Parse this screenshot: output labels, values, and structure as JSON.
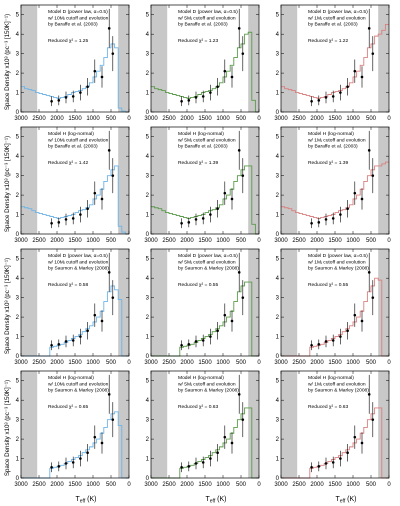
{
  "figure": {
    "ylabel": "Space Density x10³ (pc⁻³ [150K]⁻¹)",
    "xlabel": "Tₑₒₒ (K)",
    "xlabel_main": "T",
    "xlabel_sub": "eff",
    "xlabel_unit": " (K)",
    "x_ticks": [
      "3000",
      "2500",
      "2000",
      "1500",
      "1000",
      "500",
      "0"
    ],
    "y_ticks": [
      "0",
      "1",
      "2",
      "3",
      "4",
      "5"
    ]
  },
  "panel_text": [
    {
      "lines": [
        "Model D (power law, α=0.5)",
        "w/ 10Mⱼ cutoff and evolution",
        "by Baraffe et al. (2003)"
      ],
      "chi": "Reduced χ² = 1.25"
    },
    {
      "lines": [
        "Model D (power law, α=0.5)",
        "w/ 5Mⱼ cutoff and evolution",
        "by Baraffe et al. (2003)"
      ],
      "chi": "Reduced χ² = 1.23"
    },
    {
      "lines": [
        "Model D (power law, α=0.5)",
        "w/ 1Mⱼ cutoff and evolution",
        "by Baraffe et al. (2003)"
      ],
      "chi": "Reduced χ² = 1.22"
    },
    {
      "lines": [
        "Model H (log-normal)",
        "w/ 10Mⱼ cutoff and evolution",
        "by Baraffe et al. (2003)"
      ],
      "chi": "Reduced χ² = 1.42"
    },
    {
      "lines": [
        "Model H (log-normal)",
        "w/ 5Mⱼ cutoff and evolution",
        "by Baraffe et al. (2003)"
      ],
      "chi": "Reduced χ² = 1.39"
    },
    {
      "lines": [
        "Model H (log-normal)",
        "w/ 1Mⱼ cutoff and evolution",
        "by Baraffe et al. (2003)"
      ],
      "chi": "Reduced χ² = 1.39"
    },
    {
      "lines": [
        "Model D (power law, α=0.5)",
        "w/ 10Mⱼ cutoff and evolution",
        "by Saumon & Marley (2008)"
      ],
      "chi": "Reduced χ² = 0.58"
    },
    {
      "lines": [
        "Model D (power law, α=0.5)",
        "w/ 5Mⱼ cutoff and evolution",
        "by Saumon & Marley (2008)"
      ],
      "chi": "Reduced χ² = 0.55"
    },
    {
      "lines": [
        "Model D (power law, α=0.5)",
        "w/ 1Mⱼ cutoff and evolution",
        "by Saumon & Marley (2008)"
      ],
      "chi": "Reduced χ² = 0.55"
    },
    {
      "lines": [
        "Model H (log-normal)",
        "w/ 10Mⱼ cutoff and evolution",
        "by Saumon & Marley (2008)"
      ],
      "chi": "Reduced χ² = 0.65"
    },
    {
      "lines": [
        "Model H (log-normal)",
        "w/ 5Mⱼ cutoff and evolution",
        "by Saumon & Marley (2008)"
      ],
      "chi": "Reduced χ² = 0.63"
    },
    {
      "lines": [
        "Model H (log-normal)",
        "w/ 1Mⱼ cutoff and evolution",
        "by Saumon & Marley (2008)"
      ],
      "chi": "Reduced χ² = 0.63"
    }
  ],
  "colors": {
    "blue": "#6fb4e6",
    "green": "#5b9a4a",
    "red": "#d98080",
    "shade": "#c8c8c8",
    "points": "#000000"
  },
  "chart_data": {
    "type": "line",
    "grid": false,
    "layout": "4 rows x 3 columns of small multiples",
    "xlim": [
      3000,
      0
    ],
    "ylim": [
      0,
      5.5
    ],
    "shaded_x_ranges": [
      [
        3000,
        2550
      ],
      [
        300,
        0
      ]
    ],
    "observed": {
      "x": [
        2150,
        1950,
        1750,
        1550,
        1350,
        1150,
        950,
        750,
        550,
        450
      ],
      "y": [
        0.55,
        0.6,
        0.75,
        0.8,
        1.0,
        1.3,
        2.1,
        1.8,
        4.3,
        3.0
      ],
      "err": [
        0.25,
        0.25,
        0.3,
        0.3,
        0.4,
        0.45,
        0.6,
        0.55,
        1.0,
        0.9
      ]
    },
    "temperature_bins": [
      2950,
      2850,
      2750,
      2650,
      2550,
      2450,
      2350,
      2250,
      2150,
      2050,
      1950,
      1850,
      1750,
      1650,
      1550,
      1450,
      1350,
      1250,
      1150,
      1050,
      950,
      850,
      750,
      650,
      550,
      450,
      350,
      250,
      150,
      50
    ],
    "panels": [
      {
        "series_color": "blue",
        "values": [
          1.3,
          1.2,
          1.15,
          1.1,
          1.0,
          0.95,
          0.9,
          0.85,
          0.8,
          0.75,
          0.7,
          0.75,
          0.8,
          0.9,
          1.0,
          1.05,
          1.1,
          1.2,
          1.3,
          1.5,
          1.8,
          2.1,
          2.4,
          2.8,
          3.3,
          3.5,
          3.3,
          0.2,
          0.05,
          0.0
        ]
      },
      {
        "series_color": "green",
        "values": [
          1.3,
          1.2,
          1.15,
          1.1,
          1.0,
          0.95,
          0.9,
          0.85,
          0.8,
          0.75,
          0.7,
          0.75,
          0.8,
          0.9,
          1.0,
          1.05,
          1.1,
          1.2,
          1.3,
          1.5,
          1.8,
          2.1,
          2.4,
          2.8,
          3.3,
          3.5,
          4.0,
          4.1,
          0.6,
          0.0
        ]
      },
      {
        "series_color": "red",
        "values": [
          1.3,
          1.2,
          1.15,
          1.1,
          1.0,
          0.95,
          0.9,
          0.85,
          0.8,
          0.75,
          0.7,
          0.75,
          0.8,
          0.9,
          1.0,
          1.05,
          1.1,
          1.2,
          1.3,
          1.5,
          1.8,
          2.1,
          2.4,
          2.8,
          3.3,
          3.5,
          3.9,
          4.0,
          4.2,
          4.5
        ]
      },
      {
        "series_color": "blue",
        "values": [
          1.4,
          1.35,
          1.3,
          1.2,
          1.1,
          1.05,
          1.0,
          0.95,
          0.9,
          0.85,
          0.8,
          0.85,
          0.9,
          0.95,
          1.0,
          1.1,
          1.2,
          1.25,
          1.35,
          1.5,
          1.8,
          2.0,
          2.3,
          2.7,
          3.0,
          3.3,
          3.5,
          0.4,
          0.1,
          0.0
        ]
      },
      {
        "series_color": "green",
        "values": [
          1.4,
          1.35,
          1.3,
          1.2,
          1.1,
          1.05,
          1.0,
          0.95,
          0.9,
          0.85,
          0.8,
          0.85,
          0.9,
          0.95,
          1.0,
          1.1,
          1.2,
          1.25,
          1.35,
          1.5,
          1.8,
          2.0,
          2.3,
          2.7,
          3.0,
          3.3,
          3.5,
          3.5,
          0.5,
          0.0
        ]
      },
      {
        "series_color": "red",
        "values": [
          1.4,
          1.35,
          1.3,
          1.2,
          1.1,
          1.05,
          1.0,
          0.95,
          0.9,
          0.85,
          0.8,
          0.85,
          0.9,
          0.95,
          1.0,
          1.1,
          1.2,
          1.25,
          1.35,
          1.5,
          1.8,
          2.0,
          2.3,
          2.7,
          3.0,
          3.3,
          3.5,
          3.5,
          3.6,
          3.7
        ]
      },
      {
        "series_color": "blue",
        "values": [
          0,
          0,
          0,
          0,
          0,
          0,
          0,
          0,
          0.45,
          0.5,
          0.55,
          0.6,
          0.7,
          0.8,
          0.9,
          1.0,
          1.1,
          1.25,
          1.4,
          1.55,
          1.75,
          2.0,
          2.3,
          2.8,
          3.3,
          3.6,
          3.4,
          2.9,
          0,
          0
        ]
      },
      {
        "series_color": "green",
        "values": [
          0,
          0,
          0,
          0,
          0,
          0,
          0,
          0,
          0.45,
          0.5,
          0.55,
          0.6,
          0.7,
          0.8,
          0.9,
          1.0,
          1.1,
          1.25,
          1.4,
          1.55,
          1.75,
          2.0,
          2.3,
          2.8,
          3.3,
          3.6,
          3.8,
          3.8,
          0,
          0
        ]
      },
      {
        "series_color": "red",
        "values": [
          0,
          0,
          0,
          0,
          0,
          0,
          0,
          0,
          0.45,
          0.5,
          0.55,
          0.6,
          0.7,
          0.8,
          0.9,
          1.0,
          1.1,
          1.25,
          1.4,
          1.55,
          1.75,
          2.0,
          2.3,
          2.8,
          3.3,
          3.6,
          4.0,
          3.9,
          0,
          0
        ]
      },
      {
        "series_color": "blue",
        "values": [
          0,
          0,
          0,
          0,
          0,
          0,
          0,
          0,
          0.5,
          0.55,
          0.6,
          0.65,
          0.75,
          0.85,
          0.95,
          1.05,
          1.15,
          1.3,
          1.45,
          1.6,
          1.8,
          2.0,
          2.3,
          2.6,
          3.0,
          3.3,
          3.4,
          2.7,
          0,
          0
        ]
      },
      {
        "series_color": "green",
        "values": [
          0,
          0,
          0,
          0,
          0,
          0,
          0,
          0,
          0.5,
          0.55,
          0.6,
          0.65,
          0.75,
          0.85,
          0.95,
          1.05,
          1.15,
          1.3,
          1.45,
          1.6,
          1.8,
          2.0,
          2.3,
          2.6,
          3.0,
          3.3,
          3.6,
          3.6,
          0,
          0
        ]
      },
      {
        "series_color": "red",
        "values": [
          0,
          0,
          0,
          0,
          0,
          0,
          0,
          0,
          0.5,
          0.55,
          0.6,
          0.65,
          0.75,
          0.85,
          0.95,
          1.05,
          1.15,
          1.3,
          1.45,
          1.6,
          1.8,
          2.0,
          2.3,
          2.6,
          3.0,
          3.3,
          3.6,
          3.6,
          0,
          0
        ]
      }
    ]
  }
}
